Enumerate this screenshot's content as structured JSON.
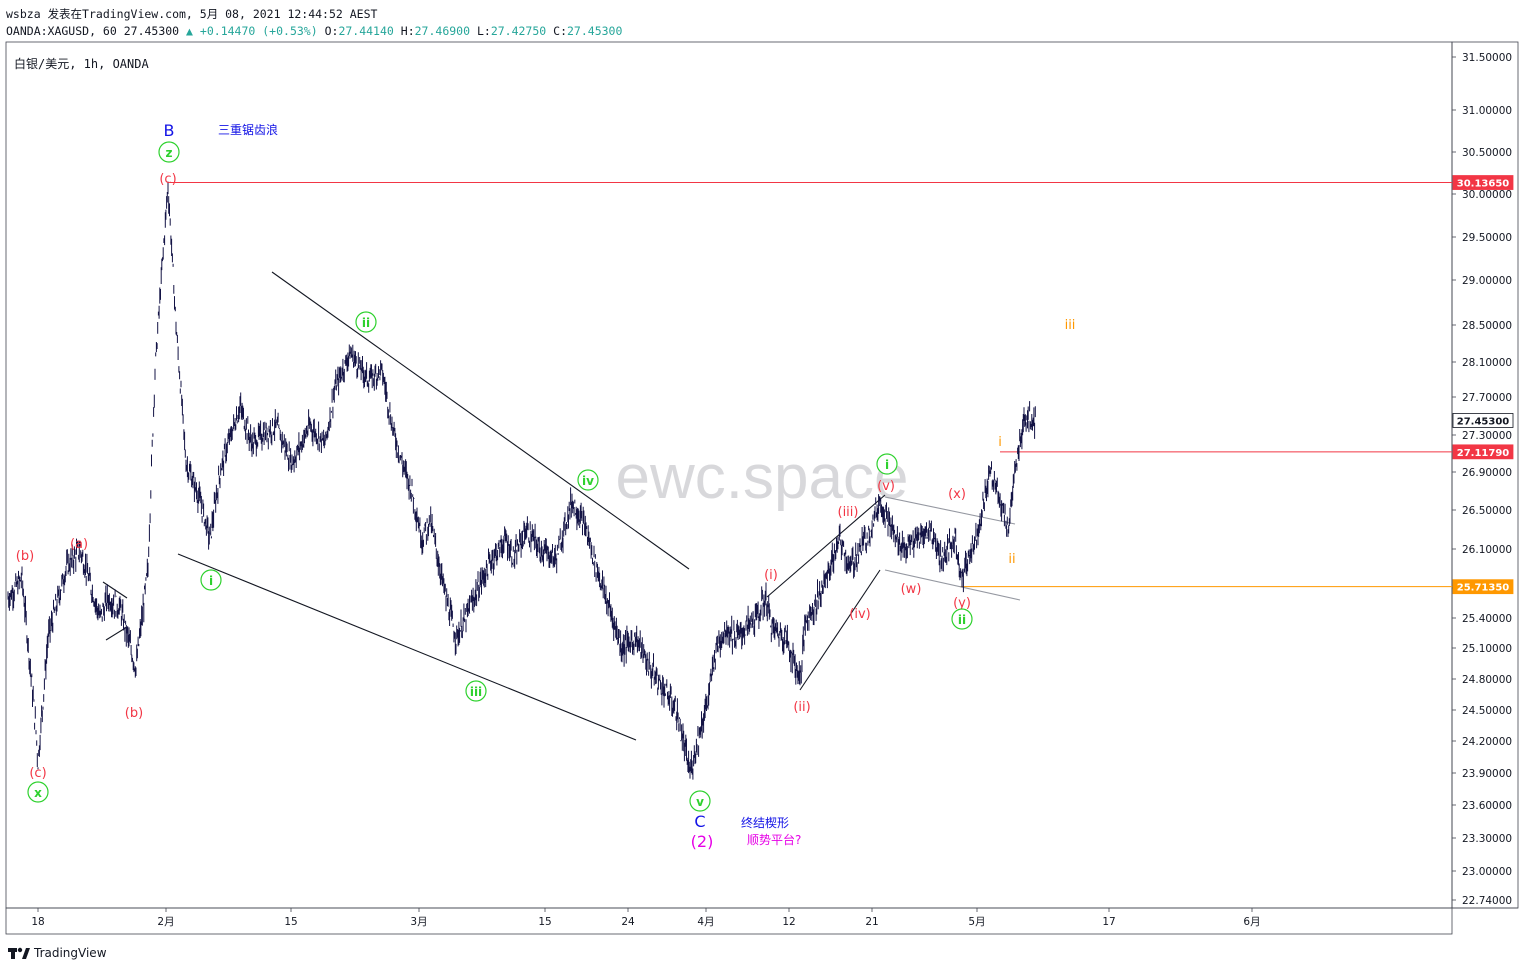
{
  "header": {
    "user": "wsbza",
    "published_on": "发表在TradingView.com",
    "datetime": "5月 08, 2021 12:44:52 AEST",
    "symbol_line_prefix": "OANDA:XAGUSD, 60",
    "last": "27.45300",
    "change": "+0.14470",
    "change_pct": "(+0.53%)",
    "o_label": "O:",
    "o_val": "27.44140",
    "h_label": "H:",
    "h_val": "27.46900",
    "l_label": "L:",
    "l_val": "27.42750",
    "c_label": "C:",
    "c_val": "27.45300"
  },
  "legend": {
    "title": "白银/美元, 1h, OANDA"
  },
  "watermark": "ewc.space",
  "footer": {
    "brand": "TradingView"
  },
  "chart_data": {
    "type": "line",
    "style": "ohlc-bars",
    "symbol": "XAGUSD",
    "interval": "1h",
    "ylim": [
      22.7,
      31.7
    ],
    "y_ticks": [
      31.5,
      31.0,
      30.5,
      30.0,
      29.5,
      29.0,
      28.5,
      28.1,
      27.7,
      27.3,
      26.9,
      26.5,
      26.1,
      25.7,
      25.4,
      25.1,
      24.8,
      24.5,
      24.2,
      23.9,
      23.6,
      23.3,
      23.0,
      22.74
    ],
    "x_ticks": [
      "18",
      "2月",
      "15",
      "3月",
      "15",
      "24",
      "4月",
      "12",
      "21",
      "5月",
      "17",
      "6月"
    ],
    "price_labels": [
      {
        "text": "30.13650",
        "price": 30.1365,
        "color": "#f23645"
      },
      {
        "text": "27.45300",
        "price": 27.453,
        "color": "#131722"
      },
      {
        "text": "27.11790",
        "price": 27.1179,
        "color": "#f23645"
      },
      {
        "text": "25.71350",
        "price": 25.7135,
        "color": "#ff9800"
      }
    ],
    "series": [
      {
        "name": "XAGUSD",
        "points": [
          [
            "01-13",
            25.6
          ],
          [
            "01-15",
            25.8
          ],
          [
            "01-17",
            24.3
          ],
          [
            "01-18",
            24.0
          ],
          [
            "01-19",
            25.2
          ],
          [
            "01-21",
            25.9
          ],
          [
            "01-22",
            26.1
          ],
          [
            "01-25",
            25.4
          ],
          [
            "01-26",
            25.6
          ],
          [
            "01-28",
            25.5
          ],
          [
            "01-29",
            24.9
          ],
          [
            "01-31",
            25.9
          ],
          [
            "02-01",
            28.0
          ],
          [
            "02-01b",
            30.1
          ],
          [
            "02-02",
            28.5
          ],
          [
            "02-03",
            27.0
          ],
          [
            "02-04",
            26.6
          ],
          [
            "02-05",
            26.2
          ],
          [
            "02-06",
            26.9
          ],
          [
            "02-08",
            27.2
          ],
          [
            "02-09",
            27.6
          ],
          [
            "02-11",
            27.2
          ],
          [
            "02-13",
            27.3
          ],
          [
            "02-15",
            27.4
          ],
          [
            "02-17",
            27.0
          ],
          [
            "02-19",
            27.4
          ],
          [
            "02-21",
            27.2
          ],
          [
            "02-22",
            27.8
          ],
          [
            "02-23",
            28.2
          ],
          [
            "02-24",
            27.9
          ],
          [
            "02-25",
            28.0
          ],
          [
            "02-26",
            27.4
          ],
          [
            "02-27",
            27.0
          ],
          [
            "03-01",
            26.7
          ],
          [
            "03-02",
            26.2
          ],
          [
            "03-03",
            26.4
          ],
          [
            "03-04",
            25.6
          ],
          [
            "03-05",
            25.2
          ],
          [
            "03-06",
            25.4
          ],
          [
            "03-07",
            25.7
          ],
          [
            "03-09",
            26.0
          ],
          [
            "03-10",
            26.2
          ],
          [
            "03-11",
            26.0
          ],
          [
            "03-12",
            26.3
          ],
          [
            "03-14",
            26.1
          ],
          [
            "03-16",
            26.0
          ],
          [
            "03-18",
            26.6
          ],
          [
            "03-19",
            26.3
          ],
          [
            "03-21",
            26.0
          ],
          [
            "03-22",
            25.6
          ],
          [
            "03-23",
            25.1
          ],
          [
            "03-24",
            25.2
          ],
          [
            "03-25",
            24.9
          ],
          [
            "03-26",
            24.7
          ],
          [
            "03-27",
            24.5
          ],
          [
            "03-29",
            23.9
          ],
          [
            "03-30",
            24.3
          ],
          [
            "03-31",
            24.6
          ],
          [
            "04-01",
            25.1
          ],
          [
            "04-02",
            25.3
          ],
          [
            "04-04",
            25.2
          ],
          [
            "04-06",
            25.3
          ],
          [
            "04-07",
            25.4
          ],
          [
            "04-08",
            25.6
          ],
          [
            "04-09",
            25.3
          ],
          [
            "04-11",
            25.2
          ],
          [
            "04-12",
            24.8
          ],
          [
            "04-13",
            25.4
          ],
          [
            "04-14",
            25.5
          ],
          [
            "04-16",
            25.8
          ],
          [
            "04-18",
            26.2
          ],
          [
            "04-19",
            25.9
          ],
          [
            "04-20",
            26.1
          ],
          [
            "04-21",
            26.3
          ],
          [
            "04-22",
            26.6
          ],
          [
            "04-23",
            26.4
          ],
          [
            "04-24",
            26.2
          ],
          [
            "04-26",
            26.1
          ],
          [
            "04-27",
            26.2
          ],
          [
            "04-28",
            26.3
          ],
          [
            "04-29",
            26.0
          ],
          [
            "04-30",
            26.2
          ],
          [
            "05-01",
            25.8
          ],
          [
            "05-02",
            26.3
          ],
          [
            "05-03",
            26.9
          ],
          [
            "05-04",
            26.7
          ],
          [
            "05-05",
            26.3
          ],
          [
            "05-06",
            26.8
          ],
          [
            "05-07",
            27.5
          ],
          [
            "05-08",
            27.45
          ]
        ]
      }
    ],
    "annotations": [
      {
        "text": "B",
        "color": "#1414e6"
      },
      {
        "text": "三重锯齿浪",
        "color": "#1414e6"
      },
      {
        "text": "z",
        "color": "#2ed12e",
        "circled": true
      },
      {
        "text": "(c)",
        "color": "#f23645"
      },
      {
        "text": "(b)",
        "color": "#f23645"
      },
      {
        "text": "(a)",
        "color": "#f23645"
      },
      {
        "text": "(b)",
        "color": "#f23645"
      },
      {
        "text": "(c)",
        "color": "#f23645"
      },
      {
        "text": "x",
        "color": "#2ed12e",
        "circled": true
      },
      {
        "text": "i",
        "color": "#2ed12e",
        "circled": true
      },
      {
        "text": "ii",
        "color": "#2ed12e",
        "circled": true
      },
      {
        "text": "iii",
        "color": "#2ed12e",
        "circled": true
      },
      {
        "text": "iv",
        "color": "#2ed12e",
        "circled": true
      },
      {
        "text": "v",
        "color": "#2ed12e",
        "circled": true
      },
      {
        "text": "C",
        "color": "#1414e6"
      },
      {
        "text": "终结楔形",
        "color": "#1414e6"
      },
      {
        "text": "(2)",
        "color": "#e600e6"
      },
      {
        "text": "顺势平台?",
        "color": "#e600e6"
      },
      {
        "text": "(i)",
        "color": "#f23645"
      },
      {
        "text": "(ii)",
        "color": "#f23645"
      },
      {
        "text": "(iii)",
        "color": "#f23645"
      },
      {
        "text": "(iv)",
        "color": "#f23645"
      },
      {
        "text": "(v)",
        "color": "#f23645"
      },
      {
        "text": "i",
        "color": "#2ed12e",
        "circled": true
      },
      {
        "text": "(w)",
        "color": "#f23645"
      },
      {
        "text": "(x)",
        "color": "#f23645"
      },
      {
        "text": "(y)",
        "color": "#f23645"
      },
      {
        "text": "ii",
        "color": "#2ed12e",
        "circled": true
      },
      {
        "text": "i",
        "color": "#ff9800"
      },
      {
        "text": "ii",
        "color": "#ff9800"
      },
      {
        "text": "iii",
        "color": "#ff9800"
      }
    ],
    "grid": false,
    "colors": {
      "bars": "#131345",
      "axis_text": "#131722",
      "red_level": "#f23645",
      "orange_level": "#ff9800"
    }
  }
}
